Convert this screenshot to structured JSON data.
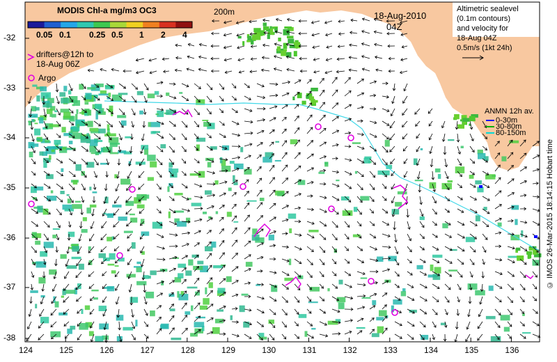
{
  "colorbar": {
    "title": "MODIS Chl-a mg/m3 OC3",
    "ticks": [
      "0.05",
      "0.1",
      "0.25",
      "0.5",
      "1",
      "2",
      "4"
    ],
    "colors": [
      "#1a1a9a",
      "#1f5fd0",
      "#23a6e8",
      "#2fc8b0",
      "#3ec850",
      "#a8d838",
      "#f0d020",
      "#f08020",
      "#d83020",
      "#901010"
    ]
  },
  "legend": {
    "drifters_line1": "drifters@12h to",
    "drifters_line2": "18-Aug 06Z",
    "argo": "Argo",
    "drifter_color": "#e000e0"
  },
  "header": {
    "date": "18-Aug-2010",
    "time": "04Z",
    "isobath_label": "200m"
  },
  "info_box": {
    "line1": "Altimetric sealevel",
    "line2": "(0.1m contours)",
    "line3": "and velocity for",
    "line4": "18-Aug 04Z",
    "scale": "0.5m/s (1kt 24h)"
  },
  "anmn_legend": {
    "title": "ANMN 12h av.",
    "items": [
      {
        "label": "0-30m",
        "color": "#0000ff"
      },
      {
        "label": "30-80m",
        "color": "#00b000"
      },
      {
        "label": "80-150m",
        "color": "#00d8d8"
      }
    ]
  },
  "axes": {
    "x_ticks": [
      "124",
      "125",
      "126",
      "127",
      "128",
      "129",
      "130",
      "131",
      "132",
      "133",
      "134",
      "135",
      "136"
    ],
    "y_ticks": [
      "-32",
      "-33",
      "-34",
      "-35",
      "-36",
      "-37",
      "-38"
    ]
  },
  "copyright": "© IMOS 26-Mar-2015 18:14:15 Hobart time",
  "colors": {
    "land": "#f8c8a0",
    "shelf_line": "#40d8e8",
    "arrow": "#000000",
    "argo": "#e000e0"
  }
}
